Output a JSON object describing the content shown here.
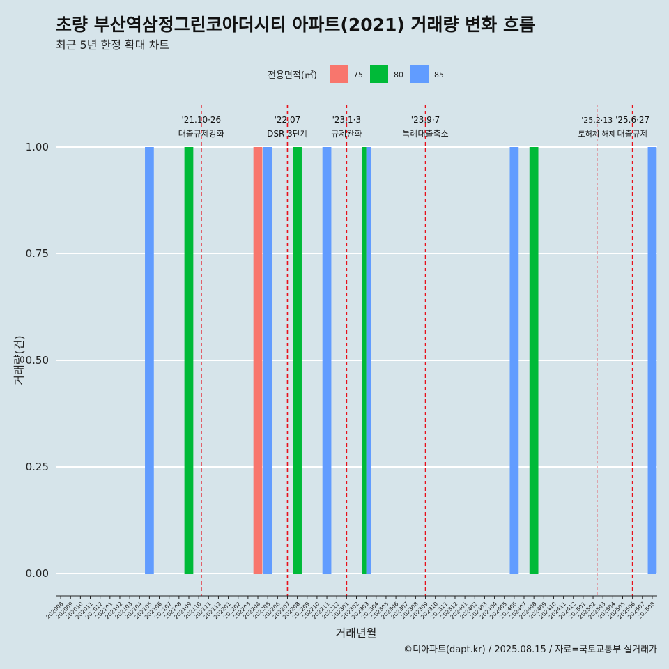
{
  "title": "초량 부산역삼정그린코아더시티 아파트(2021) 거래량 변화 흐름",
  "subtitle": "최근 5년 한정 확대 차트",
  "caption": "©디아파트(dapt.kr) / 2025.08.15 / 자료=국토교통부 실거래가",
  "chart_data": {
    "type": "bar",
    "xlabel": "거래년월",
    "ylabel": "거래량(건)",
    "ylim": [
      0,
      1
    ],
    "yticks": [
      "0.00",
      "0.25",
      "0.50",
      "0.75",
      "1.00"
    ],
    "ytick_values": [
      0,
      0.25,
      0.5,
      0.75,
      1.0
    ],
    "grid": true,
    "legend": {
      "title": "전용면적(㎡)",
      "position": "top",
      "entries": [
        {
          "label": "75",
          "color": "#F8766D"
        },
        {
          "label": "80",
          "color": "#00BA38"
        },
        {
          "label": "85",
          "color": "#619CFF"
        }
      ]
    },
    "categories": [
      "202008",
      "202009",
      "202010",
      "202011",
      "202012",
      "202101",
      "202102",
      "202103",
      "202104",
      "202105",
      "202106",
      "202107",
      "202108",
      "202109",
      "202110",
      "202111",
      "202112",
      "202201",
      "202202",
      "202203",
      "202204",
      "202205",
      "202206",
      "202207",
      "202208",
      "202209",
      "202210",
      "202211",
      "202212",
      "202301",
      "202302",
      "202303",
      "202304",
      "202305",
      "202306",
      "202307",
      "202308",
      "202309",
      "202310",
      "202311",
      "202312",
      "202401",
      "202402",
      "202403",
      "202404",
      "202405",
      "202406",
      "202407",
      "202408",
      "202409",
      "202410",
      "202411",
      "202412",
      "202501",
      "202502",
      "202503",
      "202504",
      "202505",
      "202506",
      "202507",
      "202508"
    ],
    "bars": [
      {
        "month": "202105",
        "area": "85",
        "value": 1
      },
      {
        "month": "202109",
        "area": "80",
        "value": 1
      },
      {
        "month": "202204",
        "area": "75",
        "value": 1
      },
      {
        "month": "202205",
        "area": "85",
        "value": 1
      },
      {
        "month": "202208",
        "area": "80",
        "value": 1
      },
      {
        "month": "202211",
        "area": "85",
        "value": 1
      },
      {
        "month": "202303",
        "area": "80",
        "value": 1
      },
      {
        "month": "202303",
        "area": "85",
        "value": 1
      },
      {
        "month": "202406",
        "area": "85",
        "value": 1
      },
      {
        "month": "202408",
        "area": "80",
        "value": 1
      },
      {
        "month": "202508",
        "area": "85",
        "value": 1
      }
    ],
    "events": [
      {
        "month": "202110",
        "offset": 0.26,
        "label1": "'21.10·26",
        "label2": "대출규제강화",
        "style": "dashed"
      },
      {
        "month": "202207",
        "offset": 0.0,
        "label1": "'22.07",
        "label2": "DSR 3단계",
        "style": "dashed"
      },
      {
        "month": "202301",
        "offset": 0.0,
        "label1": "'23.1·3",
        "label2": "규제완화",
        "style": "dashed"
      },
      {
        "month": "202309",
        "offset": 0.0,
        "label1": "'23.9·7",
        "label2": "특례대출축소",
        "style": "dashed"
      },
      {
        "month": "202502",
        "offset": 0.4,
        "label1": "'25.2·13",
        "label2": "토허제 해제",
        "style": "dotted"
      },
      {
        "month": "202506",
        "offset": 0.0,
        "label1": "'25.6·27",
        "label2": "대출규제",
        "style": "dashed"
      }
    ]
  }
}
